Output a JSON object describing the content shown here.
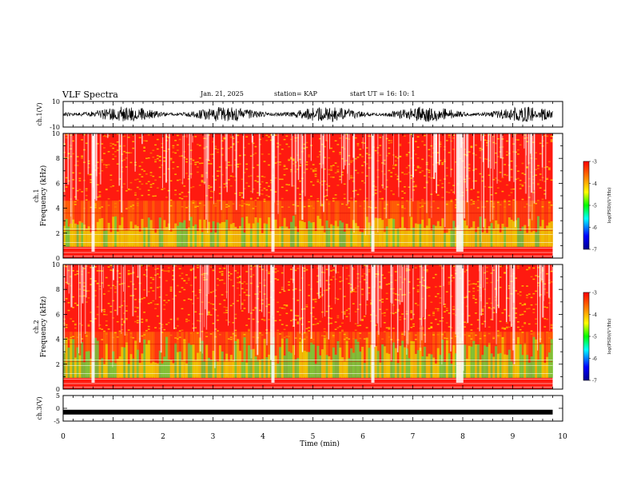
{
  "header": {
    "title": "VLF Spectra",
    "date": "Jan. 21, 2025",
    "station": "station= KAP",
    "start": "start  UT =   16: 10: 1"
  },
  "chart_data": [
    {
      "type": "line",
      "name": "ch1-waveform-panel",
      "ylabel": "ch.1(V)",
      "ylim": [
        -10,
        10
      ],
      "y_tick_labels": [
        "-10",
        "10"
      ],
      "xlim": [
        0,
        10
      ],
      "data_extent_x": [
        0,
        9.8
      ],
      "note_values": "noise waveform, roughly within -6..6 V"
    },
    {
      "type": "heatmap",
      "name": "ch1-spectrogram",
      "ylabel": "Frequency (kHz)",
      "channel_label": "ch.1",
      "ylim": [
        0,
        10
      ],
      "y_tick_labels": [
        "0",
        "2",
        "4",
        "6",
        "8",
        "10"
      ],
      "xlim": [
        0,
        10
      ],
      "data_extent_x": [
        0,
        9.8
      ],
      "colorbar": {
        "min": -7,
        "max": -3,
        "tick_labels": [
          "-3",
          "-4",
          "-5",
          "-6",
          "-7"
        ],
        "label": "log(PSD)(V²/Hz)"
      },
      "bright_gaps_x": [
        0.6,
        4.2,
        6.2,
        7.9
      ]
    },
    {
      "type": "heatmap",
      "name": "ch2-spectrogram",
      "ylabel": "Frequency (kHz)",
      "channel_label": "ch.2",
      "ylim": [
        0,
        10
      ],
      "y_tick_labels": [
        "0",
        "2",
        "4",
        "6",
        "8",
        "10"
      ],
      "xlim": [
        0,
        10
      ],
      "data_extent_x": [
        0,
        9.8
      ],
      "colorbar": {
        "min": -7,
        "max": -3,
        "tick_labels": [
          "-3",
          "-4",
          "-5",
          "-6",
          "-7"
        ],
        "label": "log(PSD)(V²/Hz)"
      },
      "bright_gaps_x": [
        0.6,
        4.2,
        6.2,
        7.9
      ]
    },
    {
      "type": "line",
      "name": "ch3-waveform-panel",
      "ylabel": "ch.3(V)",
      "ylim": [
        -5,
        5
      ],
      "y_tick_labels": [
        "-5",
        "0",
        "5"
      ],
      "xlim": [
        0,
        10
      ],
      "data_extent_x": [
        0,
        9.8
      ],
      "level": -1.5
    }
  ],
  "xaxis": {
    "label": "Time (min)",
    "tick_labels": [
      "0",
      "1",
      "2",
      "3",
      "4",
      "5",
      "6",
      "7",
      "8",
      "9",
      "10"
    ]
  },
  "colors": {
    "jet": [
      "#00008f",
      "#0000ff",
      "#00ffff",
      "#00ff00",
      "#ffff00",
      "#ff7f00",
      "#ff0000"
    ],
    "gap": "#ffffff",
    "line": "#000000"
  }
}
